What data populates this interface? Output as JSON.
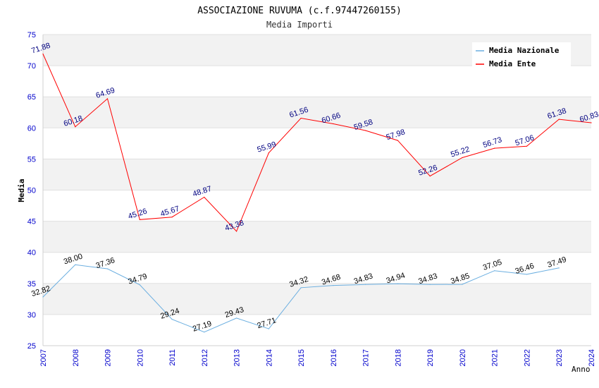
{
  "chart_data": {
    "type": "line",
    "title": "ASSOCIAZIONE RUVUMA (c.f.97447260155)",
    "subtitle": "Media Importi",
    "xlabel": "Anno",
    "ylabel": "Media",
    "ylim": [
      25,
      75
    ],
    "yticks": [
      25,
      30,
      35,
      40,
      45,
      50,
      55,
      60,
      65,
      70,
      75
    ],
    "x": [
      "2007",
      "2008",
      "2009",
      "2010",
      "2011",
      "2012",
      "2013",
      "2014",
      "2015",
      "2016",
      "2017",
      "2018",
      "2019",
      "2020",
      "2021",
      "2022",
      "2023",
      "2024"
    ],
    "grid": "horizontal bands",
    "legend_position": "top-right",
    "series": [
      {
        "name": "Media Nazionale",
        "color": "#6aaee0",
        "label_color": "#000000",
        "values": [
          32.82,
          38.0,
          37.36,
          34.79,
          29.24,
          27.19,
          29.43,
          27.71,
          34.32,
          34.68,
          34.83,
          34.94,
          34.83,
          34.85,
          37.05,
          36.46,
          37.49,
          null
        ],
        "labels": [
          "32.82",
          "38.00",
          "37.36",
          "34.79",
          "29.24",
          "27.19",
          "29.43",
          "27.71",
          "34.32",
          "34.68",
          "34.83",
          "34.94",
          "34.83",
          "34.85",
          "37.05",
          "36.46",
          "37.49",
          ""
        ]
      },
      {
        "name": "Media Ente",
        "color": "#ff0000",
        "label_color": "#000080",
        "values": [
          71.88,
          60.18,
          64.69,
          45.26,
          45.67,
          48.87,
          43.38,
          55.99,
          61.56,
          60.66,
          59.58,
          57.98,
          52.26,
          55.22,
          56.73,
          57.06,
          61.38,
          60.83
        ],
        "labels": [
          "71.88",
          "60.18",
          "64.69",
          "45.26",
          "45.67",
          "48.87",
          "43.38",
          "55.99",
          "61.56",
          "60.66",
          "59.58",
          "57.98",
          "52.26",
          "55.22",
          "56.73",
          "57.06",
          "61.38",
          "60.83"
        ]
      }
    ],
    "colors": {
      "axis_text": "#0000cc",
      "band": "#f2f2f2",
      "grid_line": "#e0e0e0"
    }
  }
}
